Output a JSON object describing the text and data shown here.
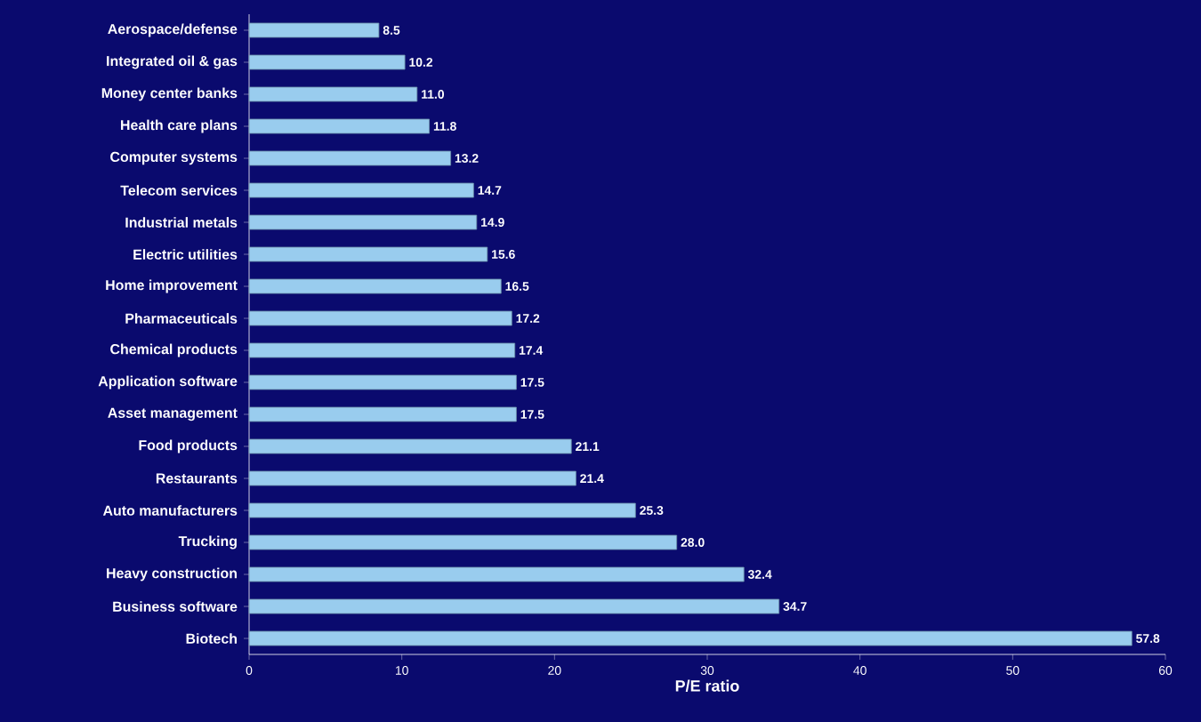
{
  "chart_data": {
    "type": "bar",
    "orientation": "horizontal",
    "xlabel": "P/E ratio",
    "categories": [
      "Aerospace/defense",
      "Integrated oil & gas",
      "Money center banks",
      "Health care plans",
      "Computer systems",
      "Telecom services",
      "Industrial metals",
      "Electric utilities",
      "Home improvement",
      "Pharmaceuticals",
      "Chemical products",
      "Application software",
      "Asset management",
      "Food products",
      "Restaurants",
      "Auto manufacturers",
      "Trucking",
      "Heavy construction",
      "Business software",
      "Biotech"
    ],
    "values": [
      8.5,
      10.2,
      11.0,
      11.8,
      13.2,
      14.7,
      14.9,
      15.6,
      16.5,
      17.2,
      17.4,
      17.5,
      17.5,
      21.1,
      21.4,
      25.3,
      28.0,
      32.4,
      34.7,
      57.8
    ],
    "color": "#99ccee",
    "xlim": [
      0,
      60
    ],
    "xticks": [
      0,
      10,
      20,
      30,
      40,
      50,
      60
    ],
    "value_labels": [
      "8.5",
      "10.2",
      "11.0",
      "11.8",
      "13.2",
      "14.7",
      "14.9",
      "15.6",
      "16.5",
      "17.2",
      "17.4",
      "17.5",
      "17.5",
      "21.1",
      "21.4",
      "25.3",
      "28.0",
      "32.4",
      "34.7",
      "57.8"
    ]
  }
}
